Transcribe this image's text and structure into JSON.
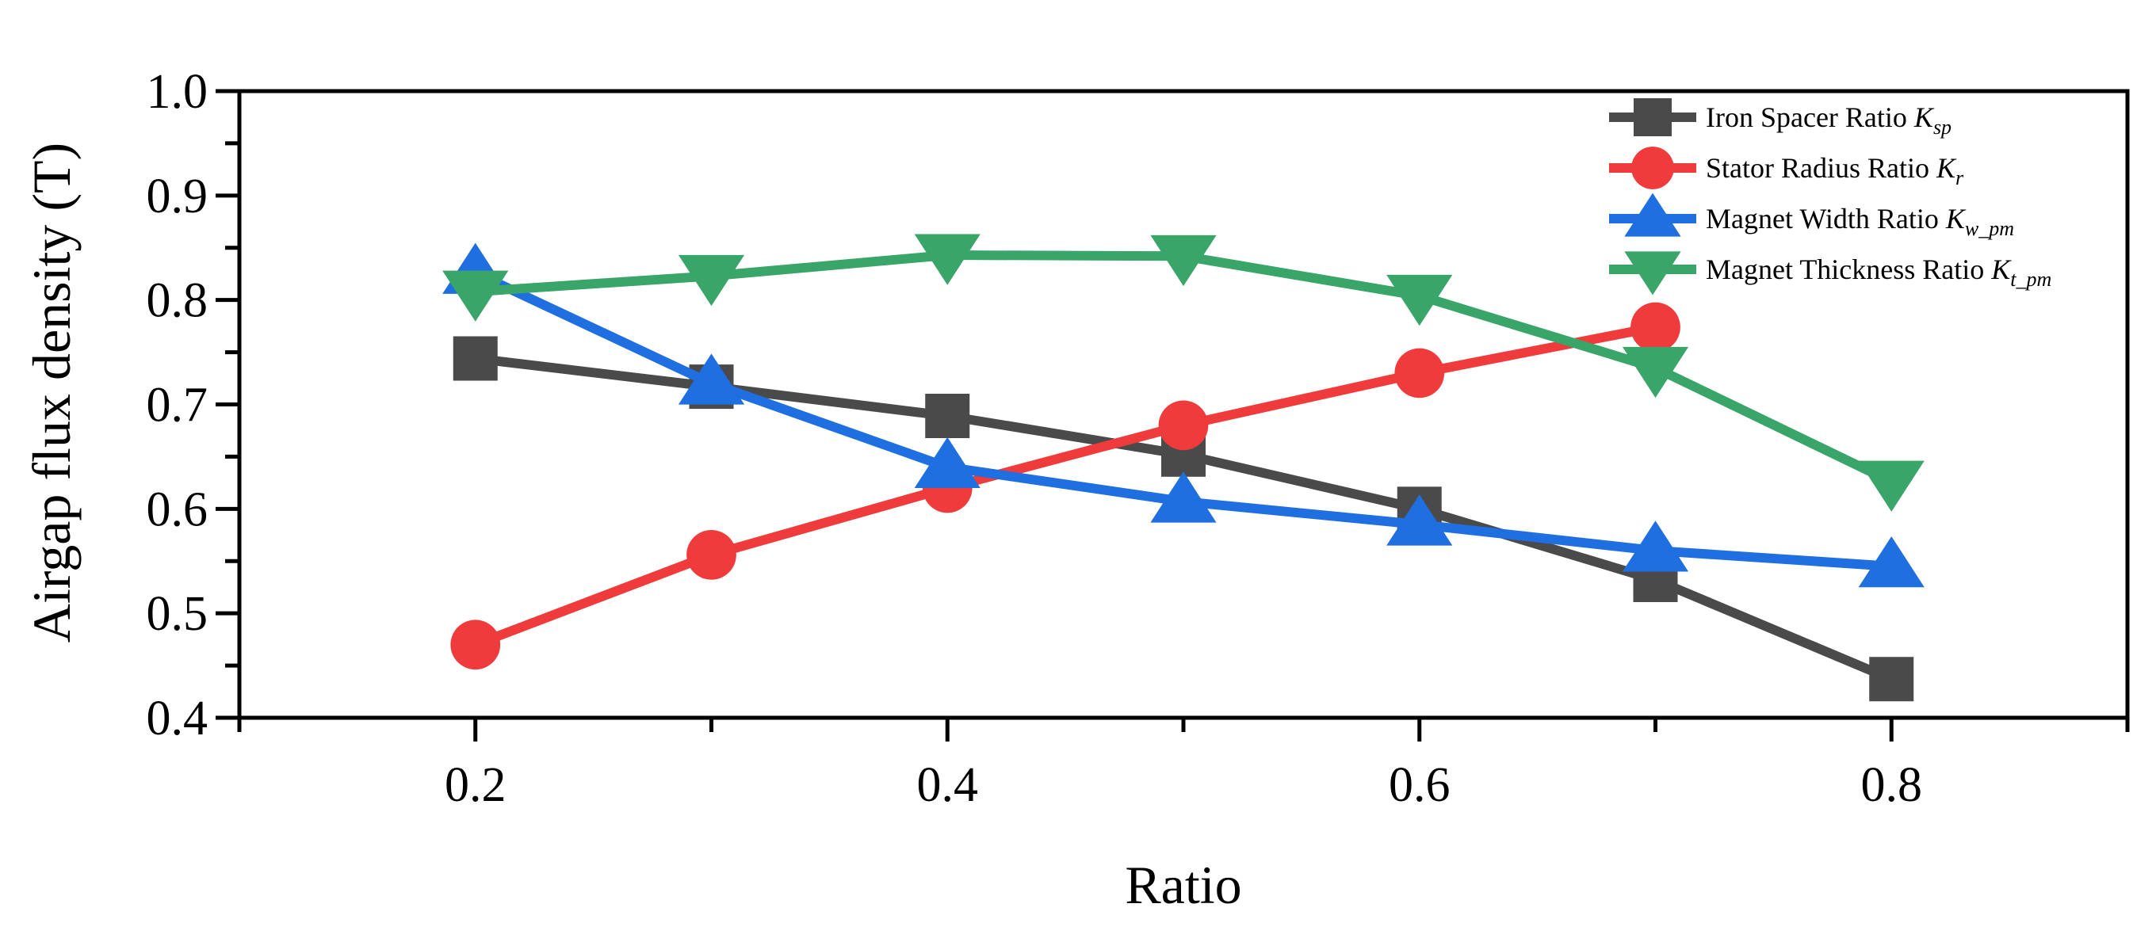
{
  "chart_data": {
    "type": "line",
    "xlabel": "Ratio",
    "ylabel": "Airgap flux density (T)",
    "xlim": [
      0.1,
      0.9
    ],
    "ylim": [
      0.4,
      1.0
    ],
    "x_ticks": [
      0.2,
      0.4,
      0.6,
      0.8
    ],
    "x_tick_labels": [
      "0.2",
      "0.4",
      "0.6",
      "0.8"
    ],
    "y_ticks": [
      0.4,
      0.5,
      0.6,
      0.7,
      0.8,
      0.9,
      1.0
    ],
    "y_tick_labels": [
      "0.4",
      "0.5",
      "0.6",
      "0.7",
      "0.8",
      "0.9",
      "1.0"
    ],
    "grid": false,
    "legend_position": "top-right",
    "series": [
      {
        "name": "Iron Spacer Ratio K_sp",
        "label_text": "Iron Spacer Ratio ",
        "label_symbol": "K",
        "label_sub": "sp",
        "color": "#4a4a4a",
        "marker": "square",
        "x": [
          0.2,
          0.3,
          0.4,
          0.5,
          0.6,
          0.7,
          0.8
        ],
        "y": [
          0.744,
          0.717,
          0.689,
          0.652,
          0.6,
          0.532,
          0.437
        ]
      },
      {
        "name": "Stator Radius Ratio K_r",
        "label_text": "Stator Radius Ratio ",
        "label_symbol": "K",
        "label_sub": "r",
        "color": "#ef3b3b",
        "marker": "circle",
        "x": [
          0.2,
          0.3,
          0.4,
          0.5,
          0.6,
          0.7
        ],
        "y": [
          0.47,
          0.556,
          0.62,
          0.68,
          0.73,
          0.774
        ]
      },
      {
        "name": "Magnet Width Ratio K_w_pm",
        "label_text": "Magnet Width Ratio ",
        "label_symbol": "K",
        "label_sub": "w_pm",
        "color": "#1f6fe0",
        "marker": "triangle-up",
        "x": [
          0.2,
          0.3,
          0.4,
          0.5,
          0.6,
          0.7,
          0.8
        ],
        "y": [
          0.826,
          0.72,
          0.64,
          0.607,
          0.585,
          0.56,
          0.545
        ]
      },
      {
        "name": "Magnet Thickness Ratio K_t_pm",
        "label_text": "Magnet Thickness Ratio ",
        "label_symbol": "K",
        "label_sub": "t_pm",
        "color": "#3aa569",
        "marker": "triangle-down",
        "x": [
          0.2,
          0.3,
          0.4,
          0.5,
          0.6,
          0.7,
          0.8
        ],
        "y": [
          0.808,
          0.823,
          0.843,
          0.842,
          0.804,
          0.735,
          0.626
        ]
      }
    ]
  }
}
